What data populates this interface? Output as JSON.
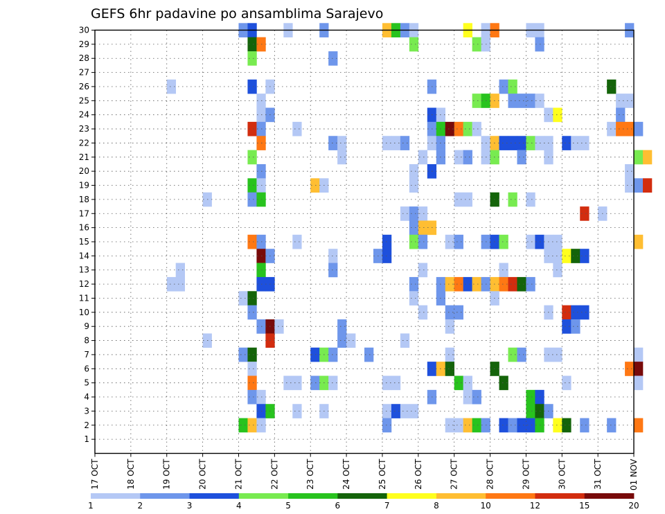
{
  "chart_data": {
    "type": "heatmap",
    "title": "GEFS 6hr padavine po ansamblima Sarajevo",
    "x_tick_labels": [
      "17 OCT",
      "18 OCT",
      "19 OCT",
      "20 OCT",
      "21 OCT",
      "22 OCT",
      "23 OCT",
      "24 OCT",
      "25 OCT",
      "26 OCT",
      "27 OCT",
      "28 OCT",
      "29 OCT",
      "30 OCT",
      "31 OCT",
      "01 NOV"
    ],
    "y_tick_labels": [
      "1",
      "2",
      "3",
      "4",
      "5",
      "6",
      "7",
      "8",
      "9",
      "10",
      "11",
      "12",
      "13",
      "14",
      "15",
      "16",
      "17",
      "18",
      "19",
      "20",
      "21",
      "22",
      "23",
      "24",
      "25",
      "26",
      "27",
      "28",
      "29",
      "30"
    ],
    "ylim": [
      0,
      30
    ],
    "grid": true,
    "colorbar": {
      "labels": [
        "1",
        "2",
        "3",
        "4",
        "5",
        "6",
        "7",
        "8",
        "10",
        "12",
        "15",
        "20"
      ],
      "colors": [
        "#b4c8f5",
        "#6e96eb",
        "#1e50dc",
        "#78eb50",
        "#28c31e",
        "#14640a",
        "#ffff1e",
        "#ffbe32",
        "#ff7814",
        "#d22d0f",
        "#780a0a"
      ]
    },
    "cells_note": "each cell = [day_index (0 = 17 OCT), six_hour_slot (0-3), member (1-30), color_class (0-10)]",
    "cells": [
      [
        4,
        0,
        30,
        1
      ],
      [
        4,
        1,
        30,
        2
      ],
      [
        5,
        1,
        30,
        0
      ],
      [
        6,
        1,
        30,
        1
      ],
      [
        8,
        0,
        30,
        7
      ],
      [
        8,
        1,
        30,
        4
      ],
      [
        8,
        2,
        30,
        1
      ],
      [
        8,
        3,
        30,
        0
      ],
      [
        10,
        1,
        30,
        6
      ],
      [
        10,
        3,
        30,
        0
      ],
      [
        11,
        0,
        30,
        8
      ],
      [
        12,
        0,
        30,
        0
      ],
      [
        12,
        1,
        30,
        0
      ],
      [
        14,
        3,
        30,
        1
      ],
      [
        4,
        1,
        29,
        5
      ],
      [
        4,
        2,
        29,
        8
      ],
      [
        8,
        3,
        29,
        3
      ],
      [
        10,
        2,
        29,
        3
      ],
      [
        10,
        3,
        29,
        0
      ],
      [
        12,
        1,
        29,
        1
      ],
      [
        4,
        1,
        28,
        3
      ],
      [
        6,
        2,
        28,
        1
      ],
      [
        2,
        0,
        26,
        0
      ],
      [
        4,
        1,
        26,
        2
      ],
      [
        4,
        3,
        26,
        0
      ],
      [
        9,
        1,
        26,
        1
      ],
      [
        11,
        1,
        26,
        1
      ],
      [
        11,
        2,
        26,
        3
      ],
      [
        14,
        1,
        26,
        5
      ],
      [
        4,
        2,
        25,
        0
      ],
      [
        10,
        2,
        25,
        3
      ],
      [
        10,
        3,
        25,
        4
      ],
      [
        11,
        0,
        25,
        7
      ],
      [
        11,
        2,
        25,
        1
      ],
      [
        11,
        3,
        25,
        1
      ],
      [
        12,
        0,
        25,
        1
      ],
      [
        12,
        1,
        25,
        0
      ],
      [
        14,
        2,
        25,
        0
      ],
      [
        14,
        3,
        25,
        0
      ],
      [
        4,
        2,
        24,
        0
      ],
      [
        4,
        3,
        24,
        1
      ],
      [
        9,
        1,
        24,
        2
      ],
      [
        9,
        2,
        24,
        0
      ],
      [
        12,
        2,
        24,
        0
      ],
      [
        12,
        3,
        24,
        6
      ],
      [
        14,
        2,
        24,
        1
      ],
      [
        4,
        1,
        23,
        9
      ],
      [
        4,
        2,
        23,
        1
      ],
      [
        5,
        2,
        23,
        0
      ],
      [
        9,
        1,
        23,
        1
      ],
      [
        9,
        2,
        23,
        4
      ],
      [
        9,
        3,
        23,
        10
      ],
      [
        10,
        0,
        23,
        8
      ],
      [
        10,
        1,
        23,
        3
      ],
      [
        10,
        2,
        23,
        0
      ],
      [
        14,
        1,
        23,
        0
      ],
      [
        14,
        2,
        23,
        8
      ],
      [
        14,
        3,
        23,
        8
      ],
      [
        15,
        0,
        23,
        1
      ],
      [
        4,
        2,
        22,
        8
      ],
      [
        6,
        2,
        22,
        1
      ],
      [
        6,
        3,
        22,
        0
      ],
      [
        8,
        0,
        22,
        0
      ],
      [
        8,
        1,
        22,
        0
      ],
      [
        8,
        2,
        22,
        1
      ],
      [
        9,
        1,
        22,
        0
      ],
      [
        9,
        2,
        22,
        1
      ],
      [
        10,
        3,
        22,
        0
      ],
      [
        11,
        0,
        22,
        7
      ],
      [
        11,
        1,
        22,
        2
      ],
      [
        11,
        2,
        22,
        2
      ],
      [
        11,
        3,
        22,
        2
      ],
      [
        12,
        0,
        22,
        3
      ],
      [
        12,
        1,
        22,
        0
      ],
      [
        12,
        2,
        22,
        0
      ],
      [
        13,
        0,
        22,
        2
      ],
      [
        13,
        1,
        22,
        0
      ],
      [
        13,
        2,
        22,
        0
      ],
      [
        4,
        1,
        21,
        3
      ],
      [
        6,
        3,
        21,
        0
      ],
      [
        9,
        0,
        21,
        0
      ],
      [
        9,
        2,
        21,
        1
      ],
      [
        10,
        0,
        21,
        0
      ],
      [
        10,
        1,
        21,
        1
      ],
      [
        10,
        3,
        21,
        0
      ],
      [
        11,
        0,
        21,
        3
      ],
      [
        11,
        3,
        21,
        1
      ],
      [
        12,
        2,
        21,
        0
      ],
      [
        15,
        0,
        21,
        3
      ],
      [
        15,
        1,
        21,
        7
      ],
      [
        4,
        2,
        20,
        1
      ],
      [
        8,
        3,
        20,
        0
      ],
      [
        9,
        1,
        20,
        2
      ],
      [
        14,
        3,
        20,
        0
      ],
      [
        4,
        1,
        19,
        4
      ],
      [
        4,
        2,
        19,
        0
      ],
      [
        6,
        0,
        19,
        7
      ],
      [
        6,
        1,
        19,
        0
      ],
      [
        8,
        3,
        19,
        0
      ],
      [
        14,
        3,
        19,
        0
      ],
      [
        15,
        0,
        19,
        1
      ],
      [
        15,
        1,
        19,
        9
      ],
      [
        3,
        0,
        18,
        0
      ],
      [
        4,
        1,
        18,
        1
      ],
      [
        4,
        2,
        18,
        4
      ],
      [
        10,
        0,
        18,
        0
      ],
      [
        10,
        1,
        18,
        0
      ],
      [
        11,
        0,
        18,
        5
      ],
      [
        11,
        2,
        18,
        3
      ],
      [
        12,
        0,
        18,
        0
      ],
      [
        8,
        2,
        17,
        0
      ],
      [
        8,
        3,
        17,
        1
      ],
      [
        9,
        0,
        17,
        0
      ],
      [
        13,
        2,
        17,
        9
      ],
      [
        14,
        0,
        17,
        0
      ],
      [
        8,
        3,
        16,
        1
      ],
      [
        9,
        0,
        16,
        7
      ],
      [
        9,
        1,
        16,
        7
      ],
      [
        4,
        1,
        15,
        8
      ],
      [
        4,
        2,
        15,
        1
      ],
      [
        5,
        2,
        15,
        0
      ],
      [
        8,
        0,
        15,
        2
      ],
      [
        8,
        3,
        15,
        3
      ],
      [
        9,
        0,
        15,
        1
      ],
      [
        9,
        3,
        15,
        0
      ],
      [
        10,
        0,
        15,
        1
      ],
      [
        10,
        3,
        15,
        1
      ],
      [
        11,
        0,
        15,
        2
      ],
      [
        11,
        1,
        15,
        3
      ],
      [
        12,
        0,
        15,
        0
      ],
      [
        12,
        1,
        15,
        2
      ],
      [
        12,
        2,
        15,
        0
      ],
      [
        12,
        3,
        15,
        0
      ],
      [
        15,
        0,
        15,
        7
      ],
      [
        4,
        2,
        14,
        10
      ],
      [
        4,
        3,
        14,
        1
      ],
      [
        6,
        2,
        14,
        0
      ],
      [
        7,
        3,
        14,
        1
      ],
      [
        8,
        0,
        14,
        2
      ],
      [
        12,
        2,
        14,
        0
      ],
      [
        12,
        3,
        14,
        0
      ],
      [
        13,
        0,
        14,
        6
      ],
      [
        13,
        1,
        14,
        5
      ],
      [
        13,
        2,
        14,
        2
      ],
      [
        2,
        1,
        13,
        0
      ],
      [
        4,
        2,
        13,
        4
      ],
      [
        6,
        2,
        13,
        1
      ],
      [
        9,
        0,
        13,
        0
      ],
      [
        11,
        1,
        13,
        0
      ],
      [
        12,
        3,
        13,
        0
      ],
      [
        2,
        0,
        12,
        0
      ],
      [
        2,
        1,
        12,
        0
      ],
      [
        4,
        2,
        12,
        2
      ],
      [
        4,
        3,
        12,
        2
      ],
      [
        8,
        3,
        12,
        1
      ],
      [
        9,
        2,
        12,
        1
      ],
      [
        9,
        3,
        12,
        7
      ],
      [
        10,
        0,
        12,
        8
      ],
      [
        10,
        1,
        12,
        2
      ],
      [
        10,
        2,
        12,
        7
      ],
      [
        10,
        3,
        12,
        1
      ],
      [
        11,
        0,
        12,
        7
      ],
      [
        11,
        1,
        12,
        8
      ],
      [
        11,
        2,
        12,
        9
      ],
      [
        11,
        3,
        12,
        5
      ],
      [
        12,
        0,
        12,
        1
      ],
      [
        4,
        0,
        11,
        0
      ],
      [
        4,
        1,
        11,
        5
      ],
      [
        8,
        3,
        11,
        0
      ],
      [
        9,
        2,
        11,
        1
      ],
      [
        11,
        0,
        11,
        0
      ],
      [
        4,
        1,
        10,
        1
      ],
      [
        9,
        0,
        10,
        0
      ],
      [
        9,
        3,
        10,
        1
      ],
      [
        10,
        0,
        10,
        1
      ],
      [
        12,
        2,
        10,
        0
      ],
      [
        13,
        0,
        10,
        9
      ],
      [
        13,
        1,
        10,
        2
      ],
      [
        13,
        2,
        10,
        2
      ],
      [
        4,
        2,
        9,
        1
      ],
      [
        4,
        3,
        9,
        10
      ],
      [
        5,
        0,
        9,
        0
      ],
      [
        6,
        3,
        9,
        1
      ],
      [
        9,
        3,
        9,
        0
      ],
      [
        13,
        0,
        9,
        2
      ],
      [
        13,
        1,
        9,
        1
      ],
      [
        3,
        0,
        8,
        0
      ],
      [
        4,
        3,
        8,
        9
      ],
      [
        6,
        3,
        8,
        1
      ],
      [
        7,
        0,
        8,
        0
      ],
      [
        8,
        2,
        8,
        0
      ],
      [
        4,
        0,
        7,
        1
      ],
      [
        4,
        1,
        7,
        5
      ],
      [
        6,
        0,
        7,
        2
      ],
      [
        6,
        1,
        7,
        3
      ],
      [
        6,
        2,
        7,
        1
      ],
      [
        7,
        2,
        7,
        1
      ],
      [
        9,
        3,
        7,
        0
      ],
      [
        11,
        2,
        7,
        3
      ],
      [
        11,
        3,
        7,
        1
      ],
      [
        12,
        2,
        7,
        0
      ],
      [
        12,
        3,
        7,
        0
      ],
      [
        15,
        0,
        7,
        0
      ],
      [
        4,
        1,
        6,
        0
      ],
      [
        9,
        1,
        6,
        2
      ],
      [
        9,
        2,
        6,
        7
      ],
      [
        9,
        3,
        6,
        5
      ],
      [
        11,
        0,
        6,
        5
      ],
      [
        14,
        3,
        6,
        8
      ],
      [
        15,
        0,
        6,
        10
      ],
      [
        4,
        1,
        5,
        8
      ],
      [
        5,
        1,
        5,
        0
      ],
      [
        5,
        2,
        5,
        0
      ],
      [
        6,
        0,
        5,
        1
      ],
      [
        6,
        1,
        5,
        3
      ],
      [
        6,
        2,
        5,
        0
      ],
      [
        8,
        0,
        5,
        0
      ],
      [
        8,
        1,
        5,
        0
      ],
      [
        10,
        0,
        5,
        4
      ],
      [
        10,
        1,
        5,
        0
      ],
      [
        11,
        1,
        5,
        5
      ],
      [
        13,
        0,
        5,
        0
      ],
      [
        15,
        0,
        5,
        0
      ],
      [
        4,
        1,
        4,
        1
      ],
      [
        4,
        2,
        4,
        0
      ],
      [
        9,
        1,
        4,
        1
      ],
      [
        10,
        1,
        4,
        0
      ],
      [
        10,
        2,
        4,
        1
      ],
      [
        12,
        0,
        4,
        4
      ],
      [
        12,
        1,
        4,
        2
      ],
      [
        4,
        2,
        3,
        2
      ],
      [
        4,
        3,
        3,
        4
      ],
      [
        5,
        2,
        3,
        0
      ],
      [
        6,
        1,
        3,
        0
      ],
      [
        8,
        0,
        3,
        0
      ],
      [
        8,
        1,
        3,
        2
      ],
      [
        8,
        2,
        3,
        0
      ],
      [
        8,
        3,
        3,
        0
      ],
      [
        12,
        0,
        3,
        4
      ],
      [
        12,
        1,
        3,
        5
      ],
      [
        12,
        2,
        3,
        1
      ],
      [
        4,
        0,
        2,
        4
      ],
      [
        4,
        1,
        2,
        7
      ],
      [
        4,
        2,
        2,
        0
      ],
      [
        8,
        0,
        2,
        1
      ],
      [
        9,
        3,
        2,
        0
      ],
      [
        10,
        0,
        2,
        0
      ],
      [
        10,
        1,
        2,
        7
      ],
      [
        10,
        2,
        2,
        4
      ],
      [
        10,
        3,
        2,
        1
      ],
      [
        11,
        1,
        2,
        2
      ],
      [
        11,
        2,
        2,
        1
      ],
      [
        11,
        3,
        2,
        2
      ],
      [
        12,
        0,
        2,
        2
      ],
      [
        12,
        1,
        2,
        4
      ],
      [
        12,
        3,
        2,
        6
      ],
      [
        13,
        0,
        2,
        5
      ],
      [
        13,
        2,
        2,
        1
      ],
      [
        14,
        1,
        2,
        1
      ],
      [
        15,
        0,
        2,
        8
      ]
    ]
  }
}
